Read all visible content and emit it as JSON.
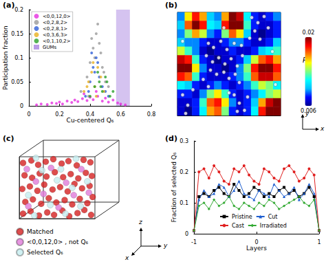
{
  "chart_data": [
    {
      "title": "(a)",
      "type": "scatter",
      "xlabel": "Cu-centered Q₆",
      "ylabel": "Participation fraction",
      "xlim": [
        0,
        0.8
      ],
      "xticks": [
        0,
        0.2,
        0.4,
        0.6,
        0.8
      ],
      "ylim": [
        0,
        0.2
      ],
      "yticks": [
        0,
        0.05,
        0.1,
        0.15,
        0.2
      ],
      "grid": false,
      "legend": "upper left",
      "series": [
        {
          "name": "<0,0,12,0>",
          "color": "#e62ee0",
          "marker": "circle",
          "x": [
            0.05,
            0.08,
            0.12,
            0.15,
            0.18,
            0.2,
            0.22,
            0.25,
            0.28,
            0.3,
            0.32,
            0.35,
            0.38,
            0.4,
            0.42,
            0.45,
            0.48,
            0.5,
            0.52,
            0.55,
            0.58,
            0.6,
            0.63,
            0.44,
            0.36
          ],
          "values": [
            0.002,
            0.004,
            0.003,
            0.006,
            0.005,
            0.008,
            0.004,
            0.01,
            0.007,
            0.012,
            0.009,
            0.015,
            0.011,
            0.018,
            0.013,
            0.02,
            0.01,
            0.016,
            0.008,
            0.012,
            0.006,
            0.004,
            0.002,
            0.03,
            0.025
          ]
        },
        {
          "name": "<0,2,8,2>",
          "color": "#9a9a9a",
          "marker": "circle",
          "x": [
            0.34,
            0.38,
            0.4,
            0.42,
            0.44,
            0.45,
            0.47,
            0.48,
            0.5,
            0.52,
            0.41,
            0.46,
            0.43,
            0.49,
            0.39
          ],
          "values": [
            0.03,
            0.06,
            0.09,
            0.12,
            0.15,
            0.17,
            0.11,
            0.08,
            0.05,
            0.04,
            0.14,
            0.13,
            0.1,
            0.07,
            0.02
          ]
        },
        {
          "name": "<0,2,8,1>",
          "color": "#2f5fd8",
          "marker": "circle",
          "x": [
            0.37,
            0.4,
            0.42,
            0.44,
            0.46,
            0.48,
            0.5,
            0.43,
            0.45,
            0.39,
            0.52,
            0.41
          ],
          "values": [
            0.02,
            0.05,
            0.08,
            0.1,
            0.06,
            0.04,
            0.03,
            0.07,
            0.09,
            0.03,
            0.02,
            0.11
          ]
        },
        {
          "name": "<0,3,6,3>",
          "color": "#e8b020",
          "marker": "circle",
          "x": [
            0.36,
            0.39,
            0.41,
            0.43,
            0.45,
            0.47,
            0.49,
            0.42,
            0.44,
            0.38
          ],
          "values": [
            0.03,
            0.05,
            0.07,
            0.04,
            0.08,
            0.06,
            0.03,
            0.09,
            0.02,
            0.04
          ]
        },
        {
          "name": "<0,1,10,2>",
          "color": "#2aa02a",
          "marker": "circle",
          "x": [
            0.4,
            0.43,
            0.46,
            0.48,
            0.5,
            0.53,
            0.45,
            0.55,
            0.47,
            0.51
          ],
          "values": [
            0.02,
            0.04,
            0.05,
            0.03,
            0.06,
            0.02,
            0.07,
            0.03,
            0.04,
            0.05
          ]
        },
        {
          "name": "GUMs",
          "type": "span",
          "color": "#b99be6",
          "x": [
            0.57,
            0.66
          ]
        }
      ]
    },
    {
      "title": "(b)",
      "type": "heatmap",
      "xlabel": "x",
      "ylabel": "y",
      "tick_labels": false,
      "xlim": [
        0,
        1
      ],
      "ylim": [
        0,
        1
      ],
      "cells": [
        [
          0.009,
          0.015,
          0.018,
          0.016,
          0.01,
          0.009,
          0.016,
          0.02,
          0.019,
          0.011,
          0.008,
          0.007,
          0.008,
          0.009
        ],
        [
          0.01,
          0.017,
          0.02,
          0.018,
          0.011,
          0.01,
          0.018,
          0.02,
          0.02,
          0.012,
          0.008,
          0.007,
          0.007,
          0.008
        ],
        [
          0.009,
          0.013,
          0.016,
          0.014,
          0.009,
          0.008,
          0.013,
          0.017,
          0.015,
          0.01,
          0.007,
          0.006,
          0.007,
          0.008
        ],
        [
          0.01,
          0.009,
          0.009,
          0.008,
          0.007,
          0.007,
          0.008,
          0.009,
          0.009,
          0.008,
          0.007,
          0.007,
          0.008,
          0.01
        ],
        [
          0.014,
          0.012,
          0.009,
          0.007,
          0.006,
          0.007,
          0.007,
          0.008,
          0.007,
          0.007,
          0.008,
          0.01,
          0.011,
          0.012
        ],
        [
          0.019,
          0.018,
          0.012,
          0.008,
          0.007,
          0.006,
          0.007,
          0.007,
          0.008,
          0.01,
          0.014,
          0.017,
          0.018,
          0.016
        ],
        [
          0.02,
          0.02,
          0.015,
          0.009,
          0.007,
          0.007,
          0.006,
          0.007,
          0.009,
          0.013,
          0.018,
          0.02,
          0.02,
          0.018
        ],
        [
          0.018,
          0.017,
          0.012,
          0.008,
          0.007,
          0.007,
          0.007,
          0.008,
          0.009,
          0.012,
          0.017,
          0.019,
          0.019,
          0.017
        ],
        [
          0.011,
          0.01,
          0.008,
          0.007,
          0.008,
          0.009,
          0.008,
          0.007,
          0.008,
          0.009,
          0.012,
          0.014,
          0.013,
          0.011
        ],
        [
          0.008,
          0.008,
          0.007,
          0.009,
          0.013,
          0.015,
          0.012,
          0.008,
          0.007,
          0.008,
          0.009,
          0.011,
          0.013,
          0.014
        ],
        [
          0.007,
          0.007,
          0.008,
          0.012,
          0.017,
          0.018,
          0.015,
          0.009,
          0.007,
          0.008,
          0.01,
          0.016,
          0.019,
          0.02
        ],
        [
          0.007,
          0.006,
          0.008,
          0.011,
          0.016,
          0.017,
          0.013,
          0.008,
          0.007,
          0.008,
          0.011,
          0.018,
          0.02,
          0.02
        ]
      ],
      "colorbar": {
        "label": "Pᵢ",
        "range": [
          0.006,
          0.02
        ],
        "ticks": [
          0.006,
          0.02
        ]
      },
      "series": [
        {
          "type": "scatter",
          "color": "#ffffff",
          "marker": "circle",
          "x": [
            0.3,
            0.35,
            0.42,
            0.48,
            0.55,
            0.62,
            0.28,
            0.34,
            0.4,
            0.46,
            0.52,
            0.58,
            0.63,
            0.32,
            0.38,
            0.45,
            0.5,
            0.56,
            0.6,
            0.25,
            0.3,
            0.72,
            0.78,
            0.84,
            0.75,
            0.88,
            0.7,
            0.8,
            0.55,
            0.6,
            0.65,
            0.58,
            0.68,
            0.05,
            0.1,
            0.15,
            0.08,
            0.92,
            0.45,
            0.05,
            0.95,
            0.5
          ],
          "values": [
            0.7,
            0.66,
            0.72,
            0.64,
            0.7,
            0.68,
            0.58,
            0.52,
            0.56,
            0.5,
            0.55,
            0.48,
            0.58,
            0.44,
            0.4,
            0.42,
            0.36,
            0.4,
            0.32,
            0.35,
            0.28,
            0.95,
            0.9,
            0.96,
            0.82,
            0.85,
            0.75,
            0.74,
            0.2,
            0.12,
            0.05,
            0.04,
            0.18,
            0.2,
            0.1,
            0.25,
            0.02,
            0.62,
            0.85,
            0.72,
            0.3,
            0.22
          ]
        }
      ]
    },
    {
      "title": "(c)",
      "type": "scatter",
      "xlabel": "x",
      "ylabel": "y",
      "zlabel": "z",
      "tick_labels": false,
      "xlim": [
        0,
        1
      ],
      "ylim": [
        0,
        1
      ],
      "legend": "lower left",
      "series": [
        {
          "name": "Matched",
          "color": "#d42020",
          "marker": "circle",
          "x": [
            0.05,
            0.15,
            0.26,
            0.37,
            0.46,
            0.57,
            0.66,
            0.77,
            0.86,
            0.95,
            0.08,
            0.18,
            0.29,
            0.39,
            0.49,
            0.6,
            0.7,
            0.8,
            0.9,
            0.97,
            0.04,
            0.14,
            0.24,
            0.33,
            0.44,
            0.54,
            0.64,
            0.73,
            0.83,
            0.93,
            0.07,
            0.17,
            0.27,
            0.36,
            0.47,
            0.58,
            0.68,
            0.78,
            0.88,
            0.96,
            0.05,
            0.16,
            0.25,
            0.35,
            0.45,
            0.56,
            0.65,
            0.76,
            0.85,
            0.94
          ],
          "values": [
            0.08,
            0.12,
            0.05,
            0.1,
            0.06,
            0.13,
            0.04,
            0.09,
            0.14,
            0.06,
            0.27,
            0.31,
            0.24,
            0.33,
            0.26,
            0.3,
            0.23,
            0.32,
            0.25,
            0.35,
            0.48,
            0.52,
            0.45,
            0.55,
            0.47,
            0.51,
            0.44,
            0.56,
            0.49,
            0.53,
            0.7,
            0.66,
            0.73,
            0.68,
            0.75,
            0.67,
            0.72,
            0.65,
            0.74,
            0.69,
            0.9,
            0.94,
            0.87,
            0.92,
            0.96,
            0.89,
            0.93,
            0.86,
            0.95,
            0.91
          ]
        },
        {
          "name": "<0,0,12,0> , not Q₆",
          "color": "#e07ad8",
          "marker": "circle",
          "x": [
            0.12,
            0.32,
            0.52,
            0.72,
            0.22,
            0.42,
            0.62,
            0.82,
            0.92,
            0.1
          ],
          "values": [
            0.2,
            0.4,
            0.18,
            0.38,
            0.6,
            0.82,
            0.58,
            0.8,
            0.42,
            0.8
          ]
        },
        {
          "name": "Selected Q₆",
          "color": "#c6eef0",
          "marker": "circle",
          "x": [
            0.2,
            0.41,
            0.61,
            0.81,
            0.12,
            0.5,
            0.7,
            0.9,
            0.3,
            0.55,
            0.75,
            0.22
          ],
          "values": [
            0.05,
            0.22,
            0.08,
            0.2,
            0.38,
            0.62,
            0.5,
            0.6,
            0.78,
            0.8,
            0.97,
            0.98
          ]
        }
      ]
    },
    {
      "title": "(d)",
      "type": "line",
      "xlabel": "Layers",
      "ylabel": "Fraction of selected Q₆",
      "x": [
        -1,
        -0.92,
        -0.84,
        -0.76,
        -0.68,
        -0.6,
        -0.52,
        -0.44,
        -0.36,
        -0.28,
        -0.2,
        -0.12,
        -0.04,
        0.04,
        0.12,
        0.2,
        0.28,
        0.36,
        0.44,
        0.52,
        0.6,
        0.68,
        0.76,
        0.84,
        0.92,
        1
      ],
      "xlim": [
        -1,
        1
      ],
      "xticks": [
        -1,
        0,
        1
      ],
      "ylim": [
        0,
        0.3
      ],
      "yticks": [
        0,
        0.1,
        0.2,
        0.3
      ],
      "grid": false,
      "legend": "lower center",
      "series": [
        {
          "name": "Pristine",
          "color": "#000000",
          "marker": "square",
          "values": [
            0.01,
            0.12,
            0.13,
            0.12,
            0.14,
            0.15,
            0.13,
            0.12,
            0.16,
            0.14,
            0.12,
            0.13,
            0.15,
            0.14,
            0.12,
            0.13,
            0.12,
            0.14,
            0.15,
            0.13,
            0.14,
            0.12,
            0.13,
            0.15,
            0.12,
            0.01
          ]
        },
        {
          "name": "Cut",
          "color": "#1f5fd0",
          "marker": "triangle",
          "values": [
            0.01,
            0.11,
            0.14,
            0.12,
            0.13,
            0.16,
            0.15,
            0.12,
            0.14,
            0.17,
            0.13,
            0.12,
            0.11,
            0.14,
            0.13,
            0.12,
            0.16,
            0.14,
            0.12,
            0.13,
            0.15,
            0.11,
            0.13,
            0.16,
            0.13,
            0.01
          ]
        },
        {
          "name": "Cast",
          "color": "#e02020",
          "marker": "circle",
          "values": [
            0.01,
            0.2,
            0.21,
            0.18,
            0.22,
            0.2,
            0.17,
            0.16,
            0.21,
            0.2,
            0.22,
            0.19,
            0.17,
            0.16,
            0.21,
            0.2,
            0.18,
            0.17,
            0.21,
            0.22,
            0.2,
            0.17,
            0.18,
            0.21,
            0.19,
            0.01
          ]
        },
        {
          "name": "Irradiated",
          "color": "#33aa33",
          "marker": "diamond",
          "values": [
            0.01,
            0.09,
            0.1,
            0.08,
            0.11,
            0.09,
            0.1,
            0.12,
            0.09,
            0.08,
            0.1,
            0.09,
            0.08,
            0.1,
            0.09,
            0.11,
            0.1,
            0.08,
            0.09,
            0.1,
            0.11,
            0.12,
            0.1,
            0.09,
            0.11,
            0.01
          ]
        }
      ]
    }
  ]
}
